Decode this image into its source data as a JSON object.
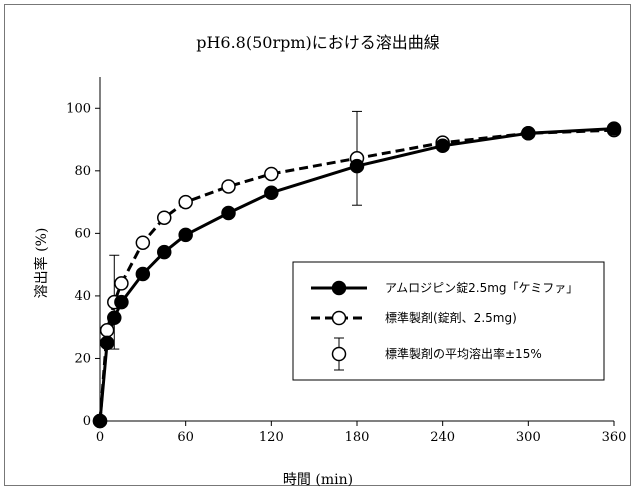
{
  "chart_data": {
    "type": "line",
    "title": "pH6.8(50rpm)における溶出曲線",
    "xlabel": "時間 (min)",
    "ylabel": "溶出率 (%)",
    "xlim": [
      0,
      360
    ],
    "ylim": [
      0,
      110
    ],
    "xticks": [
      0,
      60,
      120,
      180,
      240,
      300,
      360
    ],
    "yticks": [
      0,
      20,
      40,
      60,
      80,
      100
    ],
    "grid": false,
    "legend_position": "lower-right",
    "series": [
      {
        "name": "アムロジピン錠2.5mg「ケミファ」",
        "style": "solid",
        "marker": "filled-circle",
        "color": "#000000",
        "x": [
          0,
          5,
          10,
          15,
          30,
          45,
          60,
          90,
          120,
          180,
          240,
          300,
          360
        ],
        "y": [
          0,
          25,
          33,
          38,
          47,
          54,
          59.5,
          66.5,
          73,
          81.5,
          88,
          92,
          93.5
        ]
      },
      {
        "name": "標準製剤(錠剤、2.5mg)",
        "style": "dashed",
        "marker": "open-circle",
        "color": "#000000",
        "x": [
          0,
          5,
          10,
          15,
          30,
          45,
          60,
          90,
          120,
          180,
          240,
          300,
          360
        ],
        "y": [
          0,
          29,
          38,
          44,
          57,
          65,
          70,
          75,
          79,
          84,
          89,
          92,
          93
        ]
      }
    ],
    "error_bars": {
      "name": "標準製剤の平均溶出率±15%",
      "points": [
        {
          "x": 10,
          "y": 38,
          "low": 23,
          "high": 53
        },
        {
          "x": 180,
          "y": 84,
          "low": 69,
          "high": 99
        }
      ]
    }
  }
}
